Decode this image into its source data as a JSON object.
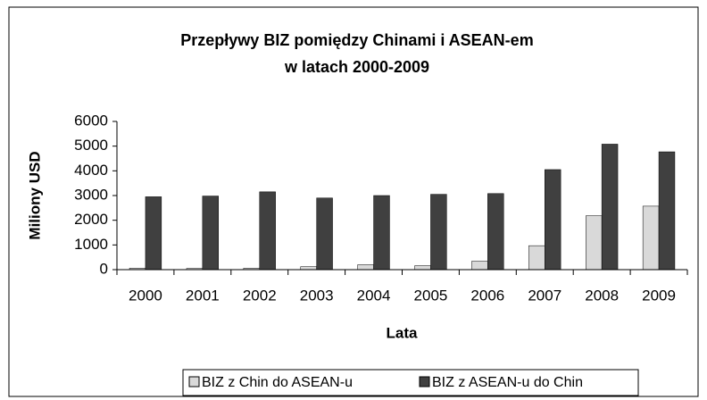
{
  "chart_data": {
    "type": "bar",
    "title": [
      "Przepływy BIZ pomiędzy Chinami i ASEAN-em",
      "w latach 2000-2009"
    ],
    "y_label": "Miliony USD",
    "x_label": "Lata",
    "categories": [
      "2000",
      "2001",
      "2002",
      "2003",
      "2004",
      "2005",
      "2006",
      "2007",
      "2008",
      "2009"
    ],
    "series": [
      {
        "name": "BIZ z Chin do ASEAN-u",
        "color": "#d9d9d9",
        "values": [
          60,
          50,
          60,
          120,
          200,
          160,
          340,
          970,
          2180,
          2570
        ]
      },
      {
        "name": "BIZ z ASEAN-u do Chin",
        "color": "#404040",
        "values": [
          2950,
          2980,
          3150,
          2900,
          3000,
          3050,
          3080,
          4050,
          5080,
          4770
        ]
      }
    ],
    "ylim": [
      0,
      6000
    ],
    "yticks": [
      0,
      1000,
      2000,
      3000,
      4000,
      5000,
      6000
    ],
    "grid": false,
    "legend": "bottom"
  }
}
